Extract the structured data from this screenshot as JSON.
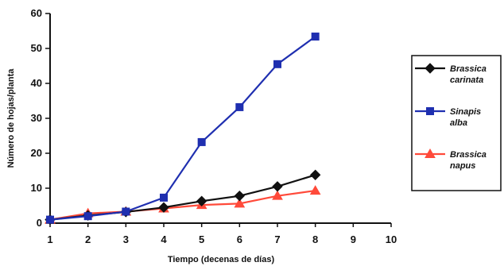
{
  "chart_data": {
    "type": "line",
    "xlabel": "Tiempo (decenas de días)",
    "ylabel": "Número de hojas/planta",
    "xlim": [
      1,
      10
    ],
    "ylim": [
      0,
      60
    ],
    "x_ticks": [
      1,
      2,
      3,
      4,
      5,
      6,
      7,
      8,
      9,
      10
    ],
    "y_ticks": [
      0,
      10,
      20,
      30,
      40,
      50,
      60
    ],
    "grid": false,
    "legend_position": "right",
    "series": [
      {
        "name": "Brassica carinata",
        "legend_lines": [
          "Brassica",
          "carinata"
        ],
        "color": "#111111",
        "marker": "diamond",
        "x": [
          1,
          2,
          3,
          4,
          5,
          6,
          7,
          8
        ],
        "values": [
          1,
          2.2,
          3.2,
          4.5,
          6.3,
          7.8,
          10.5,
          13.8
        ]
      },
      {
        "name": "Sinapis alba",
        "legend_lines": [
          "Sinapis",
          "alba"
        ],
        "color": "#1f2fb0",
        "marker": "square",
        "x": [
          1,
          2,
          3,
          4,
          5,
          6,
          7,
          8
        ],
        "values": [
          1,
          2,
          3.3,
          7.3,
          23.2,
          33.2,
          45.5,
          53.4
        ]
      },
      {
        "name": "Brassica napus",
        "legend_lines": [
          "Brassica",
          "napus"
        ],
        "color": "#ff4a3a",
        "marker": "triangle",
        "x": [
          1,
          2,
          3,
          4,
          5,
          6,
          7,
          8
        ],
        "values": [
          1,
          2.8,
          3.3,
          4.2,
          5.2,
          5.6,
          7.8,
          9.3
        ]
      }
    ]
  }
}
